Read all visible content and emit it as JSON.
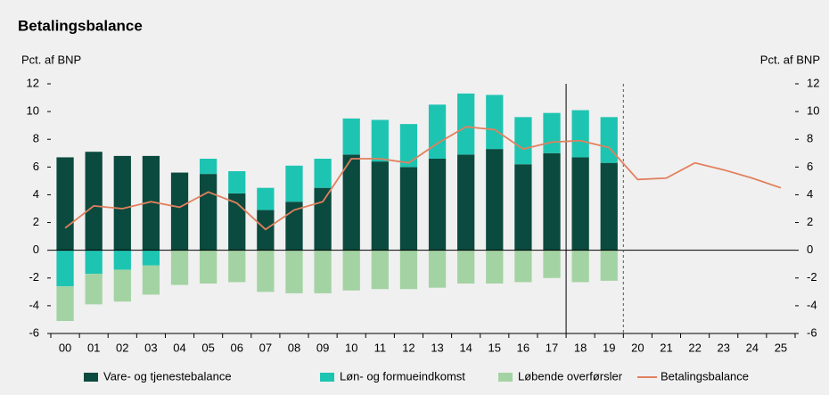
{
  "chart_data": {
    "type": "bar",
    "title": "Betalingsbalance",
    "y_label": "Pct. af BNP",
    "y2_label": "Pct. af BNP",
    "categories": [
      "00",
      "01",
      "02",
      "03",
      "04",
      "05",
      "06",
      "07",
      "08",
      "09",
      "10",
      "11",
      "12",
      "13",
      "14",
      "15",
      "16",
      "17",
      "18",
      "19",
      "20",
      "21",
      "22",
      "23",
      "24",
      "25"
    ],
    "series": [
      {
        "name": "Vare- og tjenestebalance",
        "color": "#0b4a3e",
        "type": "bar",
        "values": [
          6.7,
          7.1,
          6.8,
          6.8,
          5.6,
          5.5,
          4.1,
          2.9,
          3.5,
          4.5,
          6.9,
          6.4,
          6.0,
          6.6,
          6.9,
          7.3,
          6.2,
          7.0,
          6.7,
          6.3,
          null,
          null,
          null,
          null,
          null,
          null
        ]
      },
      {
        "name": "Løn- og formueindkomst",
        "color": "#1ec4b2",
        "type": "bar",
        "values": [
          -2.6,
          -1.7,
          -1.4,
          -1.1,
          0,
          1.1,
          1.6,
          1.6,
          2.6,
          2.1,
          2.6,
          3.0,
          3.1,
          3.9,
          4.4,
          3.9,
          3.4,
          2.9,
          3.4,
          3.3,
          null,
          null,
          null,
          null,
          null,
          null
        ]
      },
      {
        "name": "Løbende overførsler",
        "color": "#a3d3a3",
        "type": "bar",
        "values": [
          -2.5,
          -2.2,
          -2.3,
          -2.1,
          -2.5,
          -2.4,
          -2.3,
          -3.0,
          -3.1,
          -3.1,
          -2.9,
          -2.8,
          -2.8,
          -2.7,
          -2.4,
          -2.4,
          -2.3,
          -2.0,
          -2.3,
          -2.2,
          null,
          null,
          null,
          null,
          null,
          null
        ]
      },
      {
        "name": "Betalingsbalance",
        "color": "#e2805e",
        "type": "line",
        "values": [
          1.6,
          3.2,
          3.0,
          3.5,
          3.1,
          4.2,
          3.4,
          1.5,
          2.9,
          3.5,
          6.6,
          6.6,
          6.3,
          7.7,
          8.9,
          8.7,
          7.3,
          7.8,
          7.9,
          7.4,
          5.1,
          5.2,
          6.3,
          5.8,
          5.2,
          4.5
        ]
      }
    ],
    "ylim": [
      -6,
      12
    ],
    "yticks": [
      -6,
      -4,
      -2,
      0,
      2,
      4,
      6,
      8,
      10,
      12
    ],
    "y2lim": [
      -6,
      12
    ],
    "y2ticks": [
      -6,
      -4,
      -2,
      0,
      2,
      4,
      6,
      8,
      10,
      12
    ],
    "grid": false,
    "legend": "bottom"
  }
}
